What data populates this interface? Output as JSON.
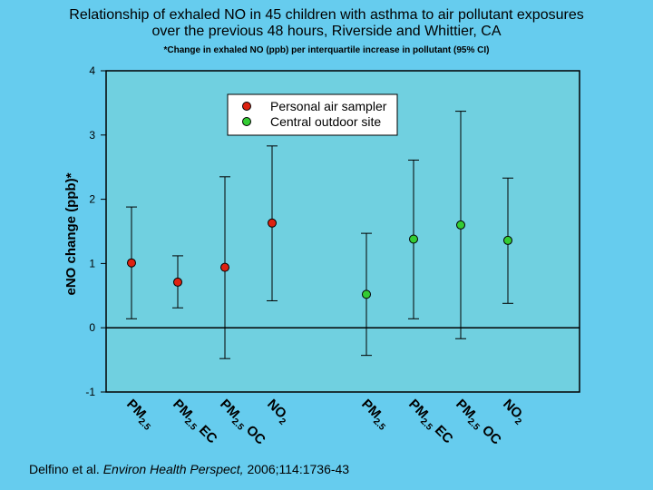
{
  "header": {
    "title_line1": "Relationship of exhaled NO in 45 children with asthma to air pollutant exposures",
    "title_line2": "over the previous 48 hours, Riverside and Whittier, CA",
    "subtitle": "*Change in exhaled NO (ppb) per interquartile increase in pollutant (95% CI)"
  },
  "citation": {
    "authors": "Delfino et al.",
    "journal": "Environ Health Perspect,",
    "details": "2006;114:1736-43"
  },
  "colors": {
    "background": "#66ccee",
    "plot_area": "#70d0e0",
    "personal": "#dd2211",
    "central": "#33cc33"
  },
  "chart_data": {
    "type": "scatter",
    "ylabel": "eNO change (ppb)*",
    "ylim": [
      -1,
      4
    ],
    "yticks": [
      "4",
      "3",
      "2",
      "1",
      "0",
      "-1"
    ],
    "reference_line": 0,
    "categories": [
      {
        "base": "PM",
        "sub": "2.5",
        "suffix": ""
      },
      {
        "base": "PM",
        "sub": "2.5",
        "suffix": " EC"
      },
      {
        "base": "PM",
        "sub": "2.5",
        "suffix": " OC"
      },
      {
        "base": "NO",
        "sub": "2",
        "suffix": ""
      },
      {
        "base": "PM",
        "sub": "2.5",
        "suffix": ""
      },
      {
        "base": "PM",
        "sub": "2.5",
        "suffix": " EC"
      },
      {
        "base": "PM",
        "sub": "2.5",
        "suffix": " OC"
      },
      {
        "base": "NO",
        "sub": "2",
        "suffix": ""
      }
    ],
    "series": [
      {
        "name": "Personal air sampler",
        "color": "#dd2211",
        "points": [
          {
            "category": 0,
            "value": 1.01,
            "lower": 0.14,
            "upper": 1.88
          },
          {
            "category": 1,
            "value": 0.71,
            "lower": 0.31,
            "upper": 1.12
          },
          {
            "category": 2,
            "value": 0.94,
            "lower": -0.48,
            "upper": 2.35
          },
          {
            "category": 3,
            "value": 1.63,
            "lower": 0.42,
            "upper": 2.83
          }
        ]
      },
      {
        "name": "Central outdoor site",
        "color": "#33cc33",
        "points": [
          {
            "category": 4,
            "value": 0.52,
            "lower": -0.43,
            "upper": 1.47
          },
          {
            "category": 5,
            "value": 1.38,
            "lower": 0.14,
            "upper": 2.61
          },
          {
            "category": 6,
            "value": 1.6,
            "lower": -0.17,
            "upper": 3.37
          },
          {
            "category": 7,
            "value": 1.36,
            "lower": 0.38,
            "upper": 2.33
          }
        ]
      }
    ],
    "legend": "top-center"
  }
}
